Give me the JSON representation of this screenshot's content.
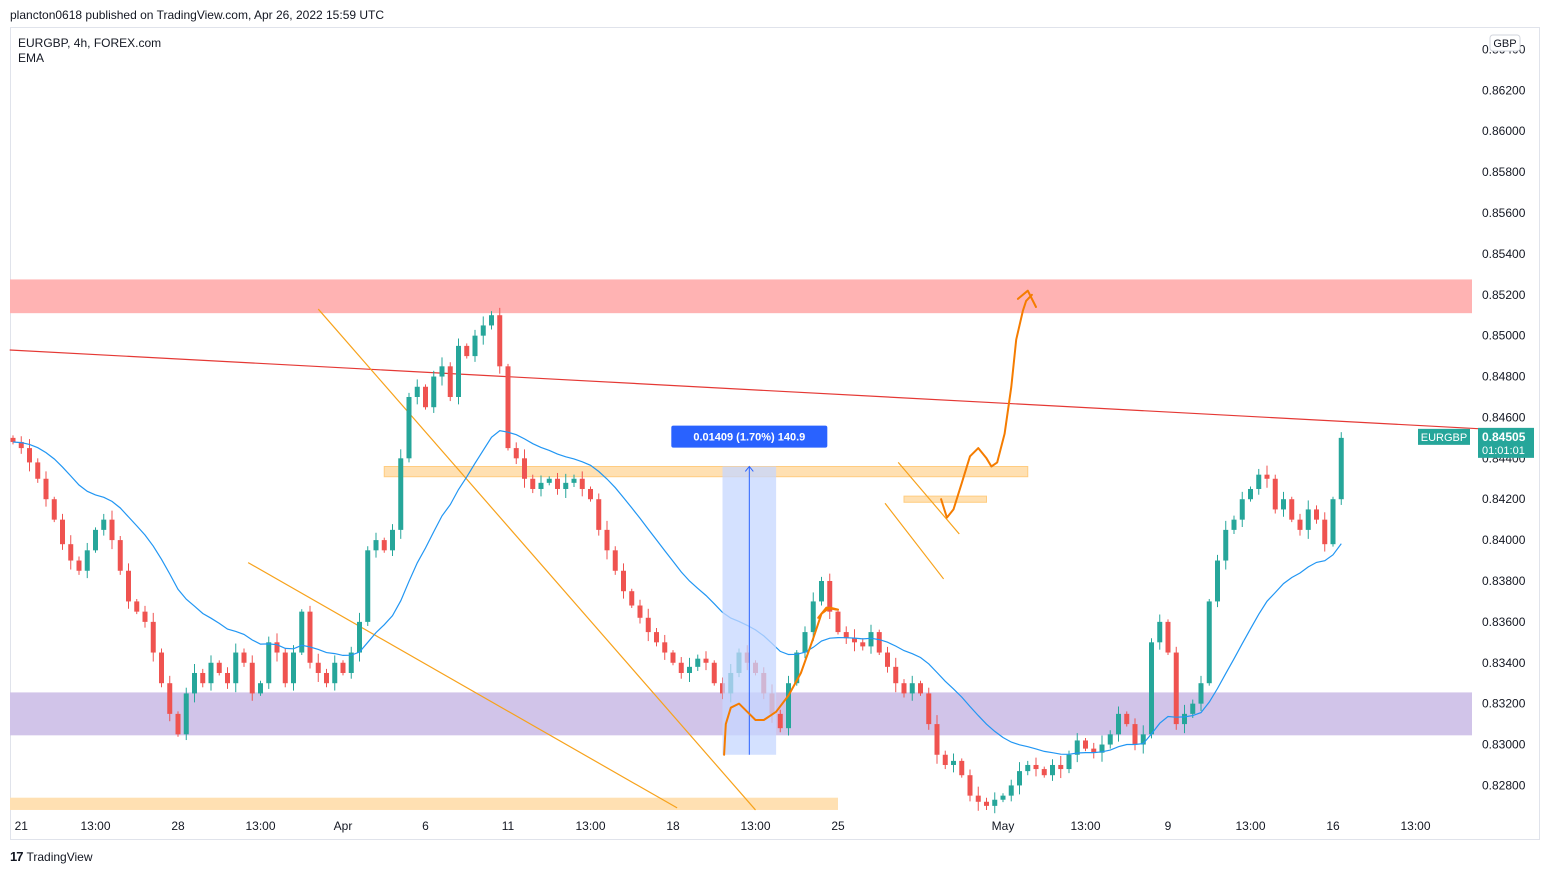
{
  "header": {
    "published_line": "plancton0618 published on TradingView.com, Apr 26, 2022 15:59 UTC"
  },
  "legend": {
    "symbol_line": "EURGBP, 4h, FOREX.com",
    "indicator": "EMA"
  },
  "footer": {
    "brand": "TradingView",
    "logo_glyph": "17"
  },
  "colors": {
    "up": "#26a69a",
    "down": "#ef5350",
    "ema": "#2196f3",
    "pattern": "#f7a21b",
    "projection": "#f57c00",
    "resistance_zone": "#ffb3b3",
    "support_zone": "#d1c4e9",
    "level_zone": "#ffe0b2",
    "trendline": "#e53935",
    "measure_fill": "#c5d7ff",
    "measure_label_bg": "#2962ff",
    "price_tag_bg": "#26a69a"
  },
  "chart_data": {
    "type": "candlestick",
    "symbol": "EURGBP",
    "timeframe": "4h",
    "ylim": [
      0.8267,
      0.865
    ],
    "price_axis": {
      "currency_label": "GBP",
      "ticks": [
        0.864,
        0.862,
        0.86,
        0.858,
        0.856,
        0.854,
        0.852,
        0.85,
        0.848,
        0.846,
        0.844,
        0.842,
        0.84,
        0.838,
        0.836,
        0.834,
        0.832,
        0.83,
        0.828
      ],
      "tick_labels": [
        "0.86400",
        "0.86200",
        "0.86000",
        "0.85800",
        "0.85600",
        "0.85400",
        "0.85200",
        "0.85000",
        "0.84800",
        "0.84600",
        "0.84400",
        "0.84200",
        "0.84000",
        "0.83800",
        "0.83600",
        "0.83400",
        "0.83200",
        "0.83000",
        "0.82800"
      ]
    },
    "time_axis": {
      "labels": [
        "21",
        "13:00",
        "28",
        "13:00",
        "Apr",
        "6",
        "11",
        "13:00",
        "18",
        "13:00",
        "25",
        "May",
        "13:00",
        "9",
        "13:00",
        "16",
        "13:00"
      ],
      "bar_index": [
        1,
        10,
        20,
        30,
        40,
        50,
        60,
        70,
        80,
        90,
        100,
        120,
        130,
        140,
        150,
        160,
        170
      ]
    },
    "last_price": {
      "symbol": "EURGBP",
      "value": "0.84505",
      "countdown": "01:01:01"
    },
    "candles_close": [
      0.8448,
      0.8445,
      0.8438,
      0.843,
      0.842,
      0.841,
      0.8398,
      0.839,
      0.8385,
      0.8395,
      0.8405,
      0.841,
      0.84,
      0.8385,
      0.837,
      0.8365,
      0.836,
      0.8345,
      0.833,
      0.8315,
      0.8305,
      0.8325,
      0.8335,
      0.833,
      0.834,
      0.8335,
      0.833,
      0.8345,
      0.834,
      0.8325,
      0.833,
      0.835,
      0.8345,
      0.833,
      0.8345,
      0.8365,
      0.834,
      0.8335,
      0.833,
      0.834,
      0.8335,
      0.8345,
      0.836,
      0.8395,
      0.84,
      0.8395,
      0.8405,
      0.844,
      0.847,
      0.8475,
      0.8465,
      0.848,
      0.8485,
      0.847,
      0.8495,
      0.849,
      0.85,
      0.8505,
      0.851,
      0.8485,
      0.8445,
      0.844,
      0.843,
      0.8425,
      0.8428,
      0.843,
      0.8425,
      0.8428,
      0.843,
      0.8425,
      0.842,
      0.8405,
      0.8395,
      0.8385,
      0.8375,
      0.8368,
      0.8362,
      0.8355,
      0.835,
      0.8345,
      0.834,
      0.8335,
      0.8338,
      0.8342,
      0.834,
      0.833,
      0.8325,
      0.8335,
      0.8345,
      0.834,
      0.8335,
      0.8325,
      0.8315,
      0.8308,
      0.833,
      0.8345,
      0.8355,
      0.837,
      0.838,
      0.8365,
      0.8355,
      0.8352,
      0.835,
      0.8348,
      0.8355,
      0.8345,
      0.8338,
      0.833,
      0.8325,
      0.833,
      0.8325,
      0.831,
      0.8295,
      0.829,
      0.8292,
      0.8285,
      0.8275,
      0.8272,
      0.827,
      0.8273,
      0.8275,
      0.828,
      0.8287,
      0.829,
      0.8288,
      0.8285,
      0.829,
      0.8288,
      0.8295,
      0.8302,
      0.8298,
      0.8296,
      0.83,
      0.8305,
      0.8315,
      0.831,
      0.83,
      0.8305,
      0.835,
      0.836,
      0.8345,
      0.831,
      0.8315,
      0.832,
      0.833,
      0.837,
      0.839,
      0.8405,
      0.841,
      0.842,
      0.8425,
      0.8432,
      0.843,
      0.8415,
      0.842,
      0.841,
      0.8405,
      0.8415,
      0.841,
      0.8398,
      0.842,
      0.845
    ]
  },
  "annotations": {
    "measure": {
      "label": "0.01409 (1.70%) 140.9"
    }
  }
}
